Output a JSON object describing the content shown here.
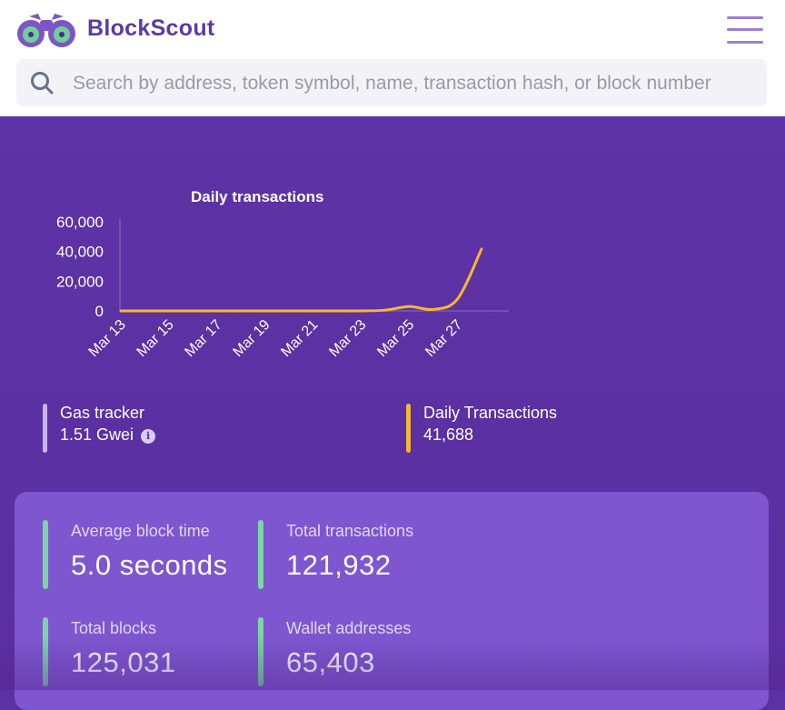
{
  "header": {
    "brand": "BlockScout",
    "logo_icon": "binoculars-icon",
    "menu_icon": "hamburger-menu-icon"
  },
  "search": {
    "icon": "search-icon",
    "placeholder": "Search by address, token symbol, name, transaction hash, or block number"
  },
  "colors": {
    "brand": "#5b3aa4",
    "hero_bg": "#5a32a3",
    "card_bg": "#7e56cf",
    "line": "#f5b72f",
    "gas_bar": "#c7b3ee",
    "stat_bar": "#7ad6a3"
  },
  "chart_data": {
    "type": "line",
    "title": "Daily transactions",
    "x": [
      "Mar 13",
      "Mar 14",
      "Mar 15",
      "Mar 16",
      "Mar 17",
      "Mar 18",
      "Mar 19",
      "Mar 20",
      "Mar 21",
      "Mar 22",
      "Mar 23",
      "Mar 24",
      "Mar 25",
      "Mar 26",
      "Mar 27",
      "Mar 28"
    ],
    "series": [
      {
        "values": [
          0,
          0,
          0,
          0,
          0,
          0,
          0,
          0,
          0,
          0,
          0,
          500,
          3000,
          1000,
          8000,
          41688
        ],
        "color": "#f5b72f"
      }
    ],
    "x_tick_labels": [
      "Mar 13",
      "Mar 15",
      "Mar 17",
      "Mar 19",
      "Mar 21",
      "Mar 23",
      "Mar 25",
      "Mar 27"
    ],
    "y_tick_labels": [
      "60,000",
      "40,000",
      "20,000",
      "0"
    ],
    "ylim": [
      0,
      60000
    ],
    "grid": false,
    "legend": "none"
  },
  "gas_tracker": {
    "label": "Gas tracker",
    "value": "1.51 Gwei",
    "info_icon": "info-icon"
  },
  "daily_transactions": {
    "label": "Daily Transactions",
    "value": "41,688"
  },
  "stats": [
    {
      "label": "Average block time",
      "value": "5.0 seconds"
    },
    {
      "label": "Total transactions",
      "value": "121,932"
    },
    {
      "label": "Total blocks",
      "value": "125,031"
    },
    {
      "label": "Wallet addresses",
      "value": "65,403"
    }
  ]
}
